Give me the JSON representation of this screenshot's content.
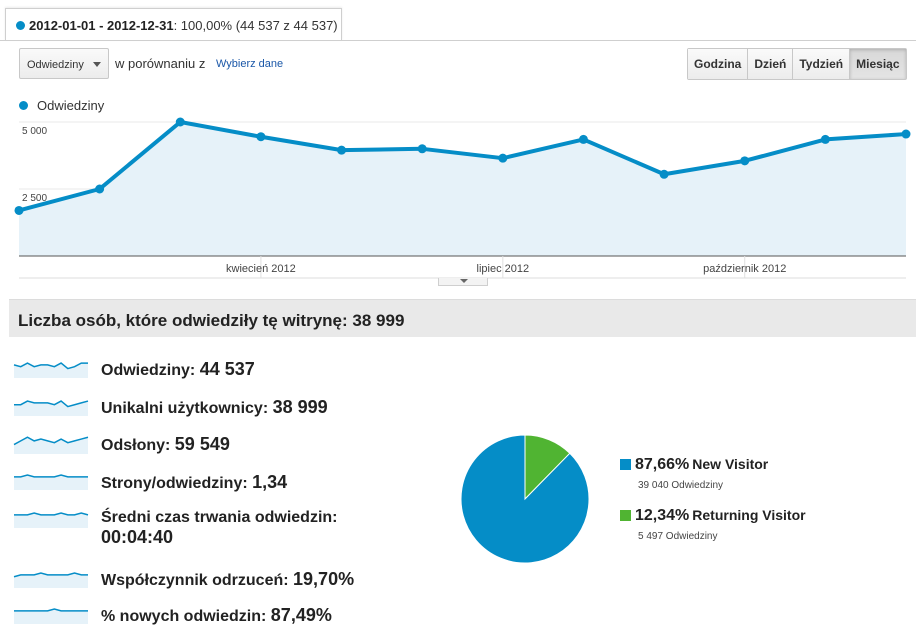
{
  "date_tab": {
    "range": "2012-01-01 - 2012-12-31",
    "share": "100,00% (44 537 z 44 537)"
  },
  "toolbar": {
    "metric_select": "Odwiedziny",
    "compare_label": "w porównaniu z",
    "pick_link": "Wybierz dane",
    "buttons": [
      "Godzina",
      "Dzień",
      "Tydzień",
      "Miesiąc"
    ],
    "active_button": "Miesiąc"
  },
  "legend": {
    "series_name": "Odwiedziny"
  },
  "chart_data": [
    {
      "type": "area",
      "series": [
        {
          "name": "Odwiedziny",
          "x": [
            "2012-01",
            "2012-02",
            "2012-03",
            "2012-04",
            "2012-05",
            "2012-06",
            "2012-07",
            "2012-08",
            "2012-09",
            "2012-10",
            "2012-11",
            "2012-12"
          ],
          "values": [
            1700,
            2500,
            5000,
            4450,
            3950,
            4000,
            3650,
            4350,
            3050,
            3550,
            4350,
            4550
          ]
        }
      ],
      "x_tick_labels": [
        "kwiecień 2012",
        "lipiec 2012",
        "październik 2012"
      ],
      "x_tick_positions": [
        "2012-04",
        "2012-07",
        "2012-10"
      ],
      "y_ticks": [
        2500,
        5000
      ],
      "y_tick_labels": [
        "2 500",
        "5 000"
      ],
      "ylim": [
        0,
        5000
      ],
      "grid": true,
      "colors": {
        "line": "#058dc7",
        "fill": "#e6f2f9"
      }
    },
    {
      "type": "pie",
      "categories": [
        "New Visitor",
        "Returning Visitor"
      ],
      "values": [
        87.66,
        12.34
      ],
      "colors": [
        "#058dc7",
        "#50b432"
      ]
    }
  ],
  "summary": {
    "label": "Liczba osób, które odwiedziły tę witrynę:",
    "value": "38 999"
  },
  "metrics": [
    {
      "label": "Odwiedziny:",
      "value": "44 537",
      "spark": [
        5,
        4,
        6,
        4,
        5,
        5,
        4,
        6,
        3,
        4,
        6,
        6
      ]
    },
    {
      "label": "Unikalni użytkownicy:",
      "value": "38 999",
      "spark": [
        4,
        4,
        6,
        5,
        5,
        5,
        4,
        6,
        3,
        4,
        5,
        6
      ]
    },
    {
      "label": "Odsłony:",
      "value": "59 549",
      "spark": [
        3,
        5,
        7,
        5,
        6,
        5,
        4,
        6,
        4,
        5,
        6,
        7
      ]
    },
    {
      "label": "Strony/odwiedziny:",
      "value": "1,34",
      "spark": [
        5,
        5,
        6,
        5,
        5,
        5,
        5,
        6,
        5,
        5,
        5,
        5
      ]
    },
    {
      "label": "Średni czas trwania odwiedzin:",
      "value": "00:04:40",
      "spark": [
        5,
        5,
        5,
        6,
        5,
        5,
        5,
        6,
        5,
        5,
        6,
        5
      ]
    },
    {
      "label": "Współczynnik odrzuceń:",
      "value": "19,70%",
      "spark": [
        4,
        5,
        5,
        5,
        6,
        5,
        5,
        5,
        5,
        6,
        5,
        5
      ]
    },
    {
      "label": "% nowych odwiedzin:",
      "value": "87,49%",
      "spark": [
        5,
        5,
        5,
        5,
        5,
        5,
        6,
        5,
        5,
        5,
        5,
        5
      ]
    }
  ],
  "pie_legend": [
    {
      "pct": "87,66%",
      "name": "New Visitor",
      "sub": "39 040 Odwiedziny",
      "color": "#058dc7"
    },
    {
      "pct": "12,34%",
      "name": "Returning Visitor",
      "sub": "5 497 Odwiedziny",
      "color": "#50b432"
    }
  ]
}
